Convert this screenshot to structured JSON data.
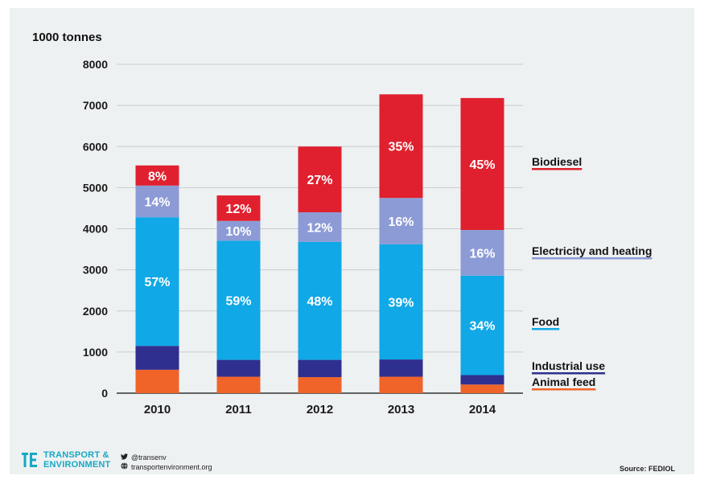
{
  "chart_data": {
    "type": "bar",
    "stacked": true,
    "ylabel": "1000 tonnes",
    "ylim": [
      0,
      8000
    ],
    "yticks": [
      0,
      1000,
      2000,
      3000,
      4000,
      5000,
      6000,
      7000,
      8000
    ],
    "grid": true,
    "categories": [
      "2010",
      "2011",
      "2012",
      "2013",
      "2014"
    ],
    "series": [
      {
        "name": "Animal feed",
        "color": "#f0642a",
        "values": [
          570,
          400,
          390,
          400,
          210
        ]
      },
      {
        "name": "Industrial use",
        "color": "#2f2f8f",
        "values": [
          580,
          410,
          420,
          420,
          230
        ]
      },
      {
        "name": "Food",
        "color": "#10a8e6",
        "values": [
          3130,
          2900,
          2870,
          2800,
          2420
        ]
      },
      {
        "name": "Electricity and heating",
        "color": "#8c9bd6",
        "values": [
          770,
          480,
          720,
          1130,
          1110
        ]
      },
      {
        "name": "Biodiesel",
        "color": "#e0202e",
        "values": [
          490,
          620,
          1600,
          2520,
          3210
        ]
      }
    ],
    "segment_labels": {
      "Food": [
        "57%",
        "59%",
        "48%",
        "39%",
        "34%"
      ],
      "Electricity and heating": [
        "14%",
        "10%",
        "12%",
        "16%",
        "16%"
      ],
      "Biodiesel": [
        "8%",
        "12%",
        "27%",
        "35%",
        "45%"
      ]
    },
    "legend_placement": "right",
    "legend_order": [
      "Biodiesel",
      "Electricity and heating",
      "Food",
      "Industrial use",
      "Animal feed"
    ]
  },
  "footer": {
    "brand_line1": "TRANSPORT &",
    "brand_line2": "ENVIRONMENT",
    "twitter": "@transenv",
    "website": "transportenvironment.org",
    "source": "Source: FEDIOL"
  },
  "colors": {
    "background": "#eef1f2",
    "brand": "#16a9c4",
    "axis_text": "#1a1a1a",
    "grid": "#c9cccf"
  }
}
